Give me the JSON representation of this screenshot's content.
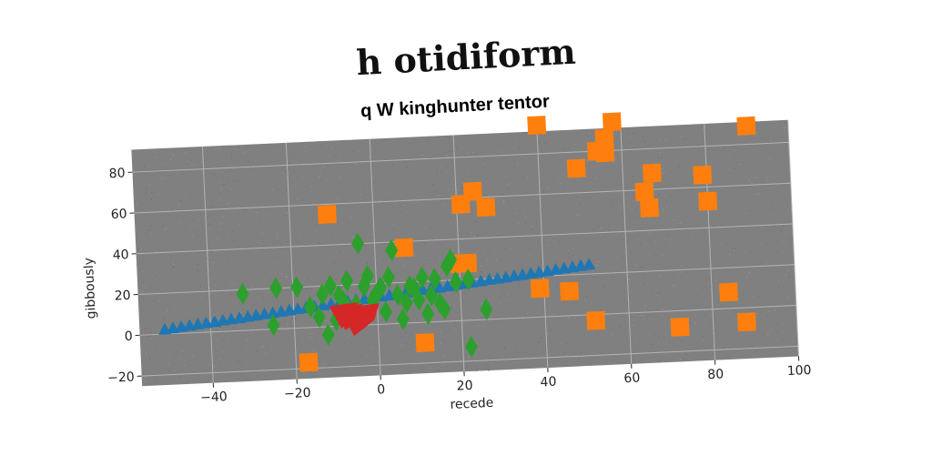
{
  "page": {
    "title": "h otidiform"
  },
  "chart_data": {
    "type": "scatter",
    "title": "q W kinghunter tentor",
    "xlabel": "recede",
    "ylabel": "gibbously",
    "xlim": [
      -57,
      100
    ],
    "ylim": [
      -25,
      91
    ],
    "xticks": [
      -40,
      -20,
      0,
      20,
      40,
      60,
      80,
      100
    ],
    "yticks": [
      -20,
      0,
      20,
      40,
      60,
      80
    ],
    "grid": true,
    "legend": "none",
    "colors": {
      "plot_background": "#808080",
      "grid": "#b4b4b4",
      "series_triangle": "#1f77b4",
      "series_square": "#ff7f0e",
      "series_diamond": "#2ca02c",
      "series_blob": "#d62728"
    },
    "series": [
      {
        "marker": "triangle",
        "color": "#1f77b4",
        "x": [
          -51,
          -49,
          -47,
          -45,
          -43,
          -41,
          -39,
          -37,
          -35,
          -33,
          -31,
          -29,
          -27,
          -25,
          -23,
          -21,
          -19,
          -17,
          -15,
          -13,
          -11,
          -9,
          -7,
          -5,
          -3,
          -1,
          1,
          3,
          5,
          7,
          9,
          11,
          13,
          15,
          17,
          19,
          21,
          23,
          25,
          27,
          29,
          31,
          33,
          35,
          37,
          39,
          41,
          43,
          45,
          47,
          49,
          51
        ],
        "y": [
          2,
          2.4,
          2.9,
          3.3,
          3.8,
          4.2,
          4.6,
          5.1,
          5.5,
          5.9,
          6.4,
          6.8,
          7.3,
          7.7,
          8.1,
          8.6,
          9,
          9.4,
          9.9,
          10.3,
          10.8,
          11.2,
          11.6,
          12.1,
          12.5,
          12.9,
          13.4,
          13.8,
          14.3,
          14.7,
          15.1,
          15.6,
          16,
          16.4,
          16.9,
          17.3,
          17.8,
          18.2,
          18.6,
          19.1,
          19.5,
          19.9,
          20.4,
          20.8,
          21.3,
          21.7,
          22.1,
          22.6,
          23,
          23.4,
          23.9,
          24.3
        ]
      },
      {
        "marker": "square",
        "color": "#ff7f0e",
        "x": [
          -11,
          7,
          21,
          24,
          27,
          20,
          22,
          40,
          56,
          54,
          58,
          49,
          56,
          67,
          65,
          66,
          79,
          80,
          90,
          84,
          52,
          46,
          39,
          11,
          72,
          88,
          -17
        ],
        "y": [
          55,
          37,
          57,
          63,
          55,
          28,
          28,
          94,
          86,
          80,
          94,
          72,
          79,
          68,
          59,
          51,
          66,
          53,
          89,
          8,
          -3,
          12,
          14,
          -10,
          -8,
          -7,
          -17
        ]
      },
      {
        "marker": "diamond",
        "color": "#2ca02c",
        "x": [
          -32,
          -24,
          -19,
          -16,
          -13,
          -11,
          -9,
          -7,
          -5,
          -3,
          -1,
          1,
          3,
          5,
          7,
          9,
          11,
          13,
          15,
          17,
          19,
          -14,
          -10,
          -6,
          -4,
          2,
          6,
          8,
          10,
          12,
          14,
          -2,
          0,
          4,
          -8,
          16,
          18,
          22,
          26,
          22,
          -25,
          -12
        ],
        "y": [
          18,
          20,
          20,
          10,
          16,
          20,
          15,
          22,
          10,
          19,
          12,
          18,
          23,
          14,
          10,
          17,
          22,
          13,
          9,
          27,
          19,
          5,
          3,
          7,
          40,
          6,
          2,
          18,
          11,
          4,
          21,
          24,
          15,
          36,
          12,
          6,
          30,
          20,
          5,
          -13,
          2,
          -4
        ]
      },
      {
        "marker": "blob",
        "color": "#d62728",
        "x": [
          -5,
          -7,
          -3,
          -5,
          -8
        ],
        "y": [
          4,
          5,
          5,
          2,
          6
        ]
      }
    ]
  }
}
